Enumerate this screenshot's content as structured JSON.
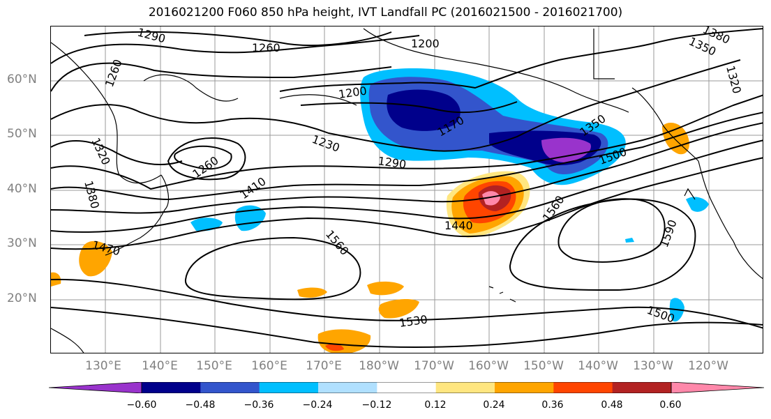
{
  "title": "2016021200 F060 850 hPa height, IVT Landfall PC (2016021500 - 2016021700)",
  "lat_labels": [
    "60°N",
    "50°N",
    "40°N",
    "30°N",
    "20°N"
  ],
  "lon_labels": [
    "130°E",
    "140°E",
    "150°E",
    "160°E",
    "170°E",
    "180°W",
    "170°W",
    "160°W",
    "150°W",
    "140°W",
    "130°W",
    "120°W"
  ],
  "contour_labels": [
    "1290",
    "1260",
    "1260",
    "1200",
    "1350",
    "1380",
    "1320",
    "1200",
    "1170",
    "1350",
    "1500",
    "1320",
    "1230",
    "1290",
    "1260",
    "1380",
    "1410",
    "1440",
    "1470",
    "1560",
    "1560",
    "1590",
    "1530",
    "1500"
  ],
  "colorbar": {
    "colors": [
      "#9933cc",
      "#00008b",
      "#3355cc",
      "#00bfff",
      "#b0e0ff",
      "#ffffff",
      "#ffe680",
      "#ffa500",
      "#ff4500",
      "#b22222",
      "#ff88aa"
    ],
    "ticks": [
      "−0.60",
      "−0.48",
      "−0.36",
      "−0.24",
      "−0.12",
      "0.12",
      "0.24",
      "0.36",
      "0.48",
      "0.60"
    ]
  }
}
